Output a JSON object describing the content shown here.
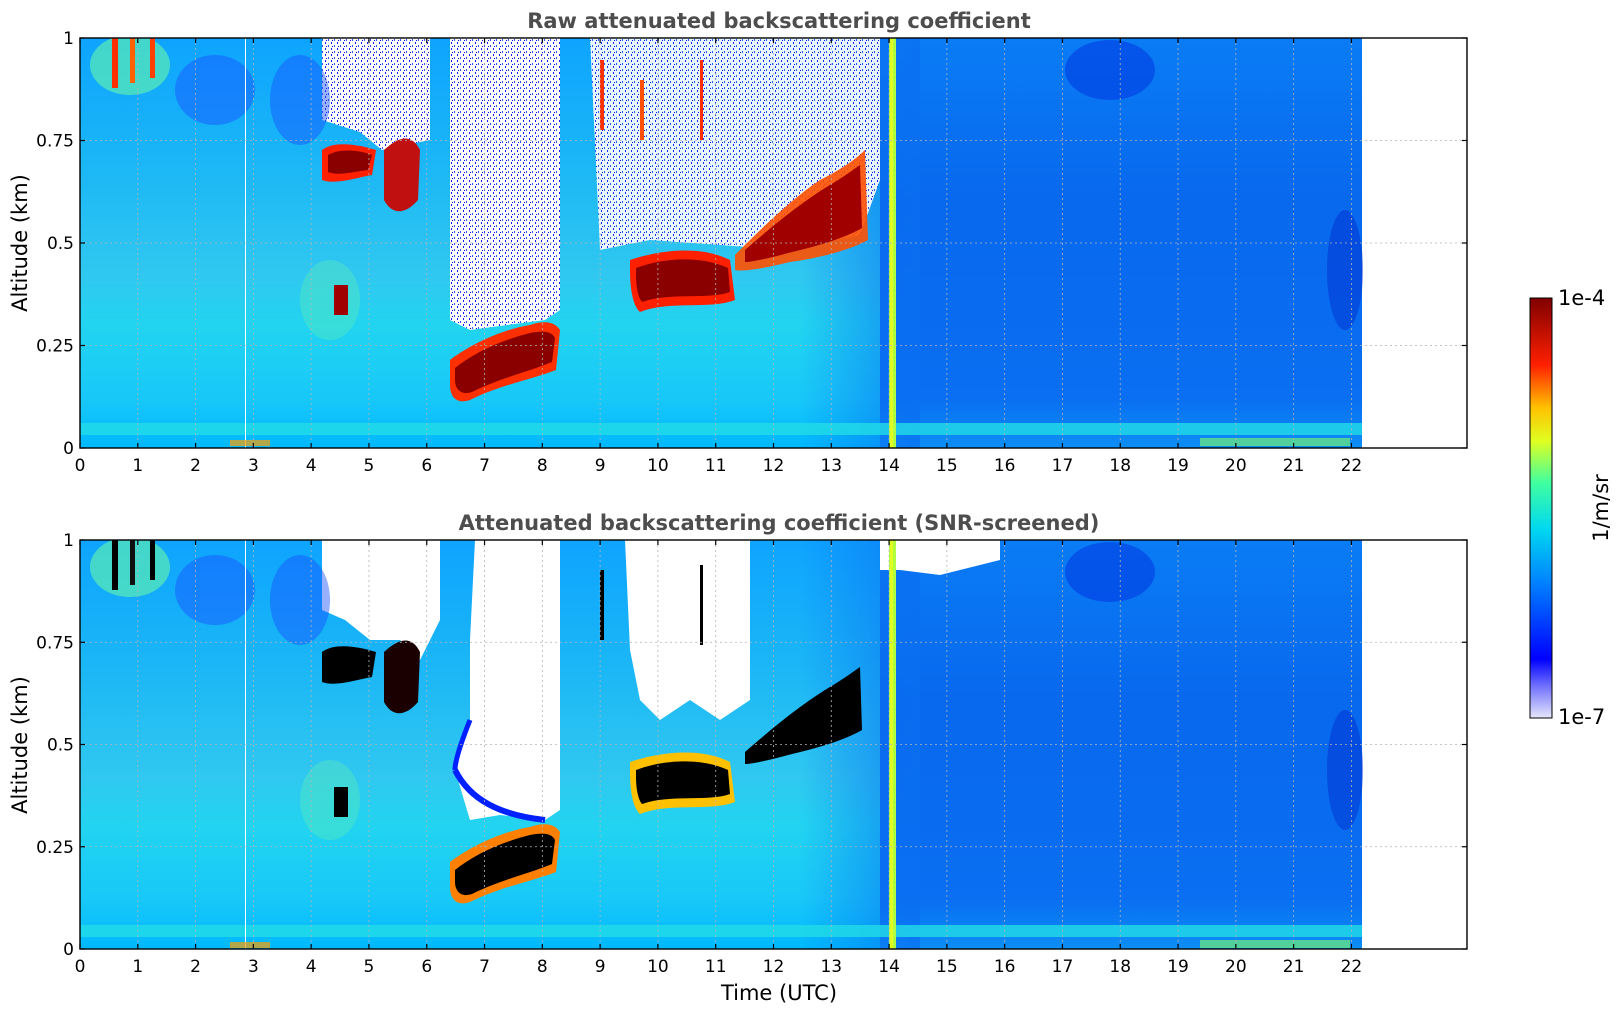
{
  "colors": {
    "text_title": "#4d4d4d",
    "grid": "#b4b4b4",
    "frame": "#000000",
    "cmap": [
      "#e6e6fa",
      "#0000ff",
      "#00a0ff",
      "#00e0e8",
      "#60ff90",
      "#ffff00",
      "#ff8000",
      "#ff0000",
      "#800000"
    ],
    "screened_fill": "#000000"
  },
  "chart_data": [
    {
      "type": "heatmap",
      "title": "Raw attenuated backscattering coefficient",
      "xlabel": "",
      "ylabel": "Altitude (km)",
      "xlim": [
        0,
        24
      ],
      "ylim": [
        0,
        1
      ],
      "xticks": [
        0,
        1,
        2,
        3,
        4,
        5,
        6,
        7,
        8,
        9,
        10,
        11,
        12,
        13,
        14,
        15,
        16,
        17,
        18,
        19,
        20,
        21,
        22
      ],
      "yticks": [
        0,
        0.25,
        0.5,
        0.75,
        1
      ],
      "ytick_labels": [
        "0",
        "0.25",
        "0.5",
        "0.75",
        "1"
      ],
      "data_extent_hours": [
        0,
        22.15
      ],
      "grid": true,
      "screened": false,
      "features": [
        {
          "kind": "boundary_layer_cloud",
          "time_start": 4.2,
          "time_end": 5.0,
          "alt_bottom": 0.62,
          "alt_top": 0.74
        },
        {
          "kind": "low_cloud_base",
          "time_start": 6.4,
          "time_end": 8.1,
          "alt_bottom": 0.12,
          "alt_top": 0.3
        },
        {
          "kind": "cloud_layer",
          "time_start": 9.5,
          "time_end": 11.3,
          "alt_bottom": 0.35,
          "alt_top": 0.47
        },
        {
          "kind": "cloud_layer",
          "time_start": 11.3,
          "time_end": 13.7,
          "alt_bottom": 0.47,
          "alt_top": 0.72
        },
        {
          "kind": "precipitation_streak",
          "time_start": 14.0,
          "time_end": 14.15,
          "alt_bottom": 0.0,
          "alt_top": 1.0
        }
      ]
    },
    {
      "type": "heatmap",
      "title": "Attenuated backscattering coefficient (SNR-screened)",
      "xlabel": "Time (UTC)",
      "ylabel": "Altitude (km)",
      "xlim": [
        0,
        24
      ],
      "ylim": [
        0,
        1
      ],
      "xticks": [
        0,
        1,
        2,
        3,
        4,
        5,
        6,
        7,
        8,
        9,
        10,
        11,
        12,
        13,
        14,
        15,
        16,
        17,
        18,
        19,
        20,
        21,
        22
      ],
      "yticks": [
        0,
        0.25,
        0.5,
        0.75,
        1
      ],
      "ytick_labels": [
        "0",
        "0.25",
        "0.5",
        "0.75",
        "1"
      ],
      "data_extent_hours": [
        0,
        22.15
      ],
      "grid": true,
      "screened": true
    }
  ],
  "colorbar": {
    "label": "1/m/sr",
    "min_label": "1e-7",
    "max_label": "1e-4",
    "range": [
      1e-07,
      0.0001
    ],
    "scale": "log"
  }
}
